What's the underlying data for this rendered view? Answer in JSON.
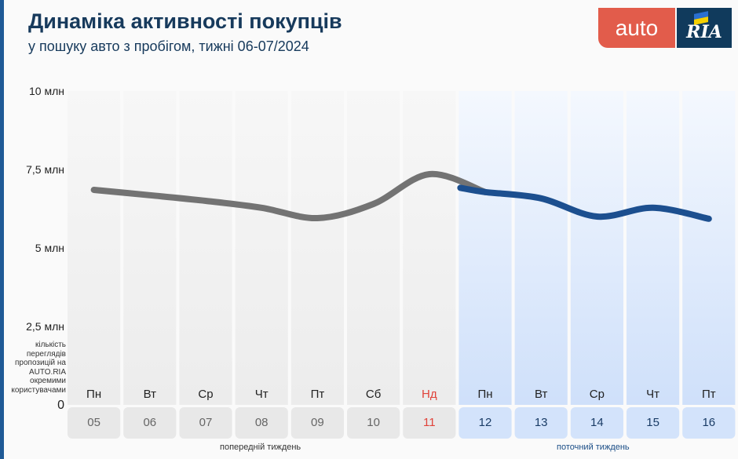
{
  "title": "Динаміка активності покупців",
  "subtitle": "у пошуку авто з пробігом, тижні 06-07/2024",
  "logo": {
    "left": "auto",
    "right": "RIA"
  },
  "colors": {
    "previous": "#737373",
    "current": "#1c4f8f",
    "sunday": "#e0433a",
    "accent": "#1f5a96"
  },
  "chart_data": {
    "type": "line",
    "title": "Динаміка активності покупців",
    "ylabel": "кількість переглядів пропозицій на AUTO.RIA окремими користувачами",
    "ylim": [
      0,
      10
    ],
    "y_ticks": [
      {
        "v": 0,
        "label": "0"
      },
      {
        "v": 2.5,
        "label": "2,5 млн"
      },
      {
        "v": 5,
        "label": "5 млн"
      },
      {
        "v": 7.5,
        "label": "7,5 млн"
      },
      {
        "v": 10,
        "label": "10 млн"
      }
    ],
    "days": [
      "Пн",
      "Вт",
      "Ср",
      "Чт",
      "Пт",
      "Сб",
      "Нд",
      "Пн",
      "Вт",
      "Ср",
      "Чт",
      "Пт"
    ],
    "dates": [
      "05",
      "06",
      "07",
      "08",
      "09",
      "10",
      "11",
      "12",
      "13",
      "14",
      "15",
      "16"
    ],
    "values": [
      6.85,
      6.68,
      6.5,
      6.28,
      5.95,
      6.4,
      7.35,
      6.78,
      6.58,
      6.0,
      6.28,
      5.93
    ],
    "previous_week_count": 7,
    "week_labels": {
      "previous": "попередній тиждень",
      "current": "поточний тиждень"
    },
    "unit": "млн"
  }
}
